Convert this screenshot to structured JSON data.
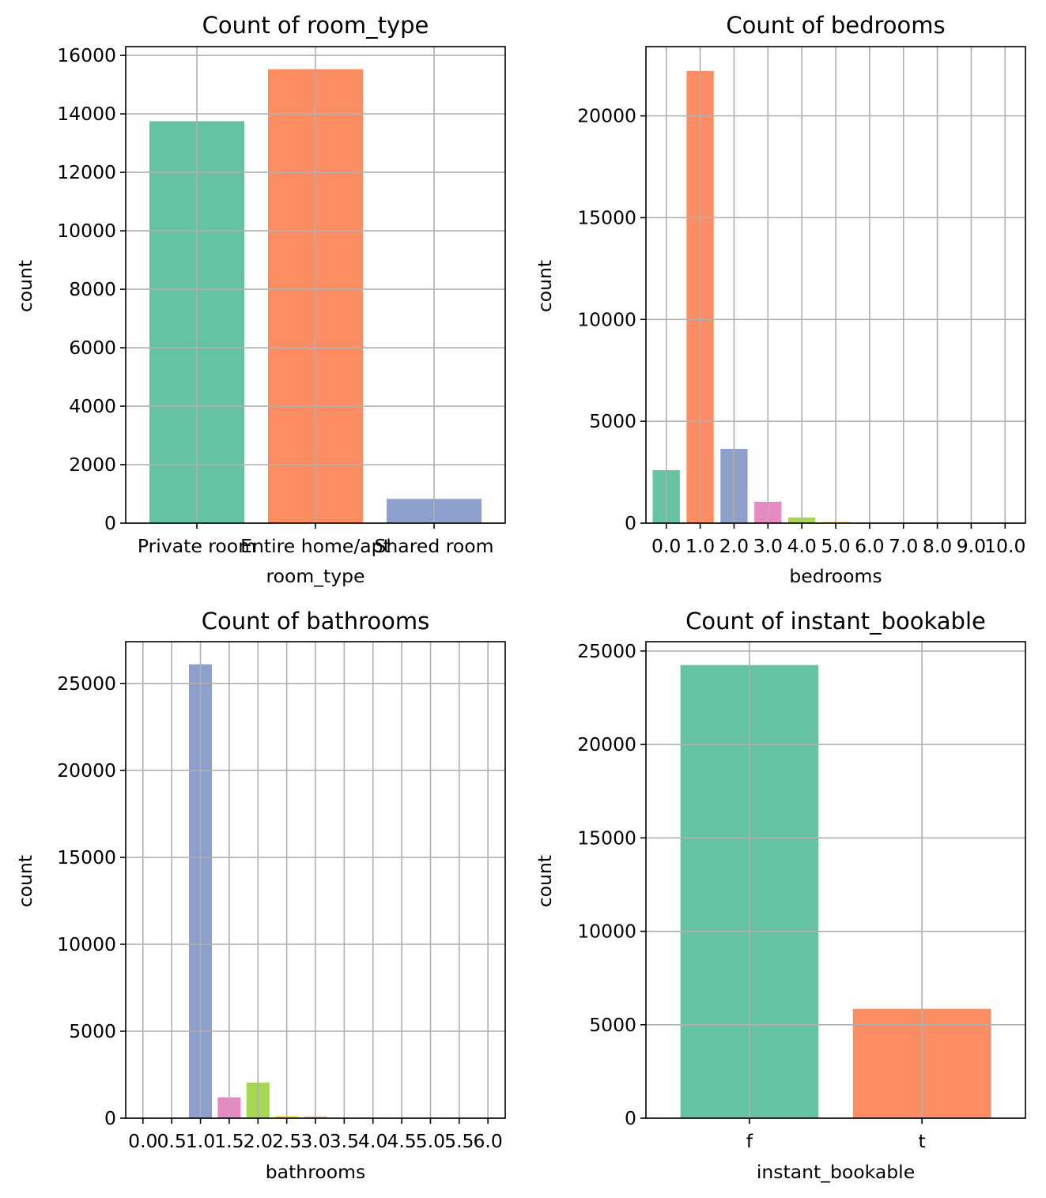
{
  "chart_data": [
    {
      "type": "bar",
      "title": "Count of room_type",
      "xlabel": "room_type",
      "ylabel": "count",
      "categories": [
        "Private room",
        "Entire home/apt",
        "Shared room"
      ],
      "values": [
        13750,
        15530,
        830
      ],
      "colors": [
        "#66c2a5",
        "#fc8d62",
        "#8da0cb"
      ],
      "ylim": [
        0,
        16300
      ],
      "yticks": [
        0,
        2000,
        4000,
        6000,
        8000,
        10000,
        12000,
        14000,
        16000
      ],
      "grid": true
    },
    {
      "type": "bar",
      "title": "Count of bedrooms",
      "xlabel": "bedrooms",
      "ylabel": "count",
      "categories": [
        "0.0",
        "1.0",
        "2.0",
        "3.0",
        "4.0",
        "5.0",
        "6.0",
        "7.0",
        "8.0",
        "9.0",
        "10.0"
      ],
      "values": [
        2600,
        22200,
        3650,
        1050,
        280,
        60,
        15,
        5,
        3,
        2,
        1
      ],
      "colors": [
        "#66c2a5",
        "#fc8d62",
        "#8da0cb",
        "#e78ac3",
        "#a6d854",
        "#ffd92f",
        "#e5c494",
        "#b3b3b3",
        "#66c2a5",
        "#fc8d62",
        "#8da0cb"
      ],
      "ylim": [
        0,
        23400
      ],
      "yticks": [
        0,
        5000,
        10000,
        15000,
        20000
      ],
      "grid": true
    },
    {
      "type": "bar",
      "title": "Count of bathrooms",
      "xlabel": "bathrooms",
      "ylabel": "count",
      "categories": [
        "0.0",
        "0.5",
        "1.0",
        "1.5",
        "2.0",
        "2.5",
        "3.0",
        "3.5",
        "4.0",
        "4.5",
        "5.0",
        "5.5",
        "6.0"
      ],
      "values": [
        20,
        30,
        26100,
        1200,
        2050,
        130,
        110,
        15,
        10,
        5,
        3,
        2,
        1
      ],
      "colors": [
        "#66c2a5",
        "#fc8d62",
        "#8da0cb",
        "#e78ac3",
        "#a6d854",
        "#ffd92f",
        "#e5c494",
        "#b3b3b3",
        "#66c2a5",
        "#fc8d62",
        "#8da0cb",
        "#e78ac3",
        "#a6d854"
      ],
      "ylim": [
        0,
        27400
      ],
      "yticks": [
        0,
        5000,
        10000,
        15000,
        20000,
        25000
      ],
      "grid": true
    },
    {
      "type": "bar",
      "title": "Count of instant_bookable",
      "xlabel": "instant_bookable",
      "ylabel": "count",
      "categories": [
        "f",
        "t"
      ],
      "values": [
        24250,
        5850
      ],
      "colors": [
        "#66c2a5",
        "#fc8d62"
      ],
      "ylim": [
        0,
        25500
      ],
      "yticks": [
        0,
        5000,
        10000,
        15000,
        20000,
        25000
      ],
      "grid": true
    }
  ]
}
